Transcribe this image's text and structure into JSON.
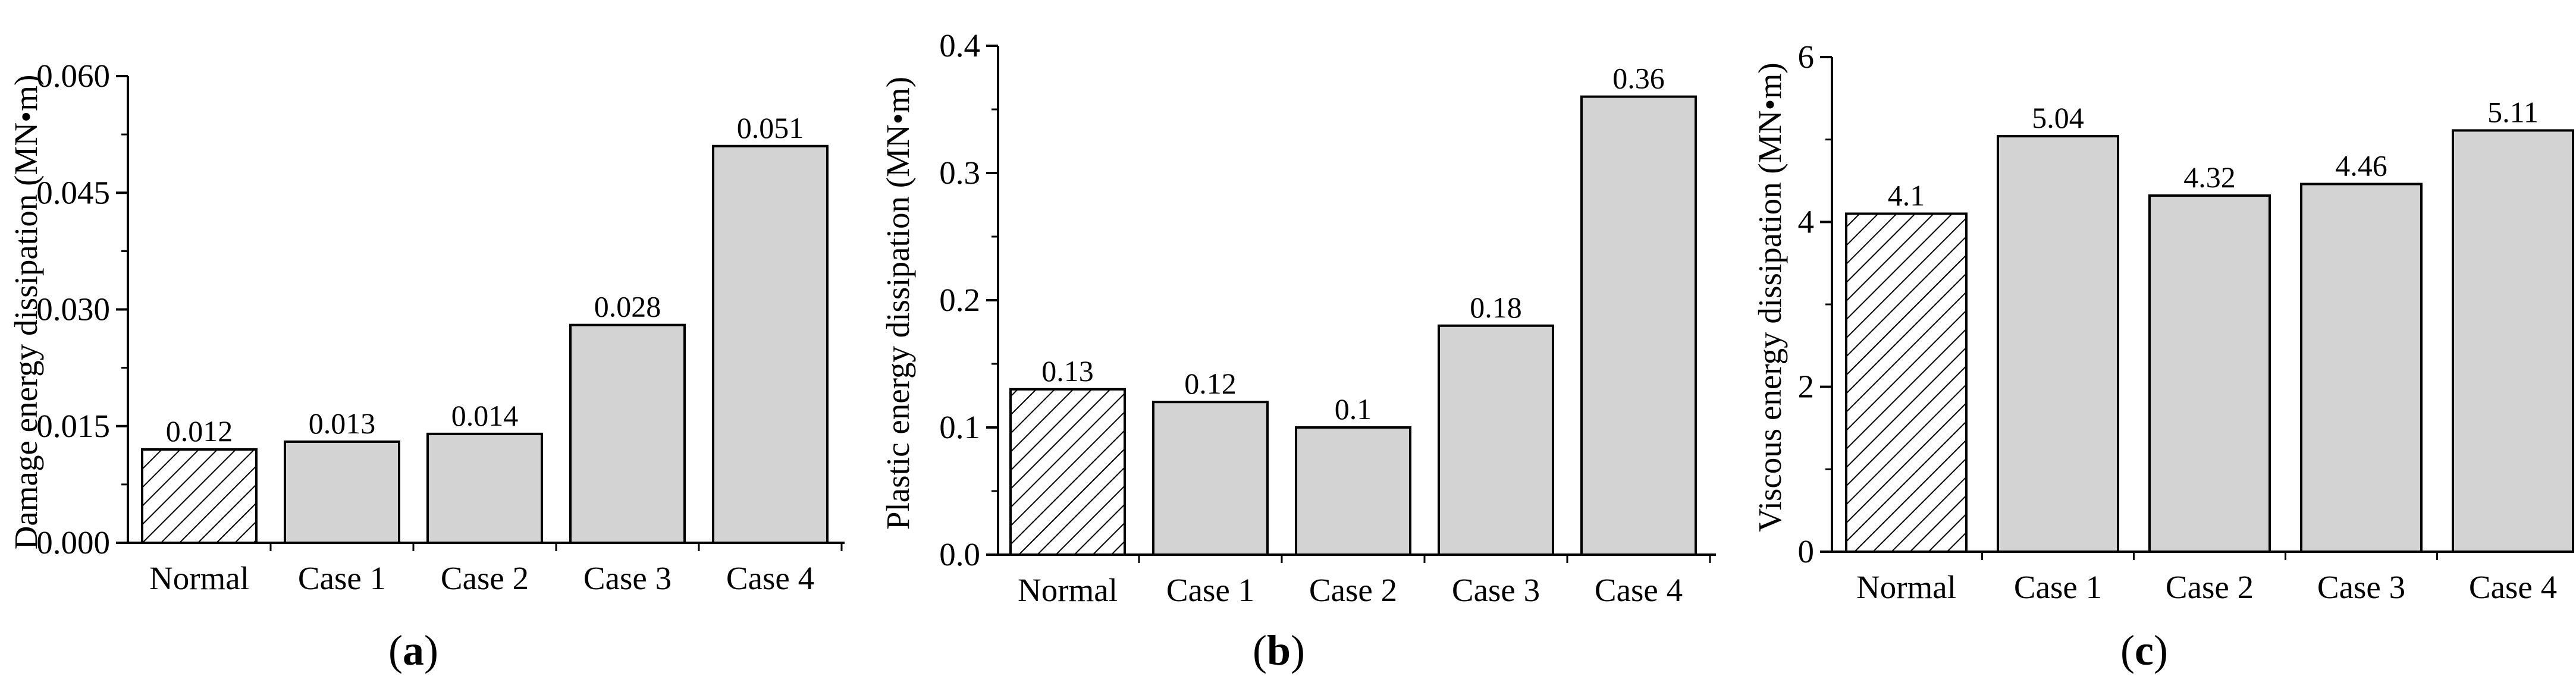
{
  "colors": {
    "bar_fill": "#d3d3d3",
    "bar_stroke": "#000000",
    "hatch": "#000000",
    "background": "#ffffff"
  },
  "chart_data": [
    {
      "type": "bar",
      "panel_label": "(a)",
      "panel_letter": "a",
      "title": "",
      "xlabel": "",
      "ylabel": "Damage energy dissipation (MN•m)",
      "categories": [
        "Normal",
        "Case 1",
        "Case 2",
        "Case 3",
        "Case 4"
      ],
      "values": [
        0.012,
        0.013,
        0.014,
        0.028,
        0.051
      ],
      "value_labels": [
        "0.012",
        "0.013",
        "0.014",
        "0.028",
        "0.051"
      ],
      "hatched": [
        true,
        false,
        false,
        false,
        false
      ],
      "ylim": [
        0,
        0.06
      ],
      "yticks": [
        0,
        0.015,
        0.03,
        0.045,
        0.06
      ],
      "ytick_labels": [
        "0.000",
        "0.015",
        "0.030",
        "0.045",
        "0.060"
      ],
      "grid": false
    },
    {
      "type": "bar",
      "panel_label": "(b)",
      "panel_letter": "b",
      "title": "",
      "xlabel": "",
      "ylabel": "Plastic energy dissipation (MN•m)",
      "categories": [
        "Normal",
        "Case 1",
        "Case 2",
        "Case 3",
        "Case 4"
      ],
      "values": [
        0.13,
        0.12,
        0.1,
        0.18,
        0.36
      ],
      "value_labels": [
        "0.13",
        "0.12",
        "0.1",
        "0.18",
        "0.36"
      ],
      "hatched": [
        true,
        false,
        false,
        false,
        false
      ],
      "ylim": [
        0,
        0.4
      ],
      "yticks": [
        0,
        0.1,
        0.2,
        0.3,
        0.4
      ],
      "ytick_labels": [
        "0.0",
        "0.1",
        "0.2",
        "0.3",
        "0.4"
      ],
      "grid": false
    },
    {
      "type": "bar",
      "panel_label": "(c)",
      "panel_letter": "c",
      "title": "",
      "xlabel": "",
      "ylabel": "Viscous energy dissipation (MN•m)",
      "categories": [
        "Normal",
        "Case 1",
        "Case 2",
        "Case 3",
        "Case 4"
      ],
      "values": [
        4.1,
        5.04,
        4.32,
        4.46,
        5.11
      ],
      "value_labels": [
        "4.1",
        "5.04",
        "4.32",
        "4.46",
        "5.11"
      ],
      "hatched": [
        true,
        false,
        false,
        false,
        false
      ],
      "ylim": [
        0,
        6
      ],
      "yticks": [
        0,
        2,
        4,
        6
      ],
      "ytick_labels": [
        "0",
        "2",
        "4",
        "6"
      ],
      "grid": false
    }
  ]
}
